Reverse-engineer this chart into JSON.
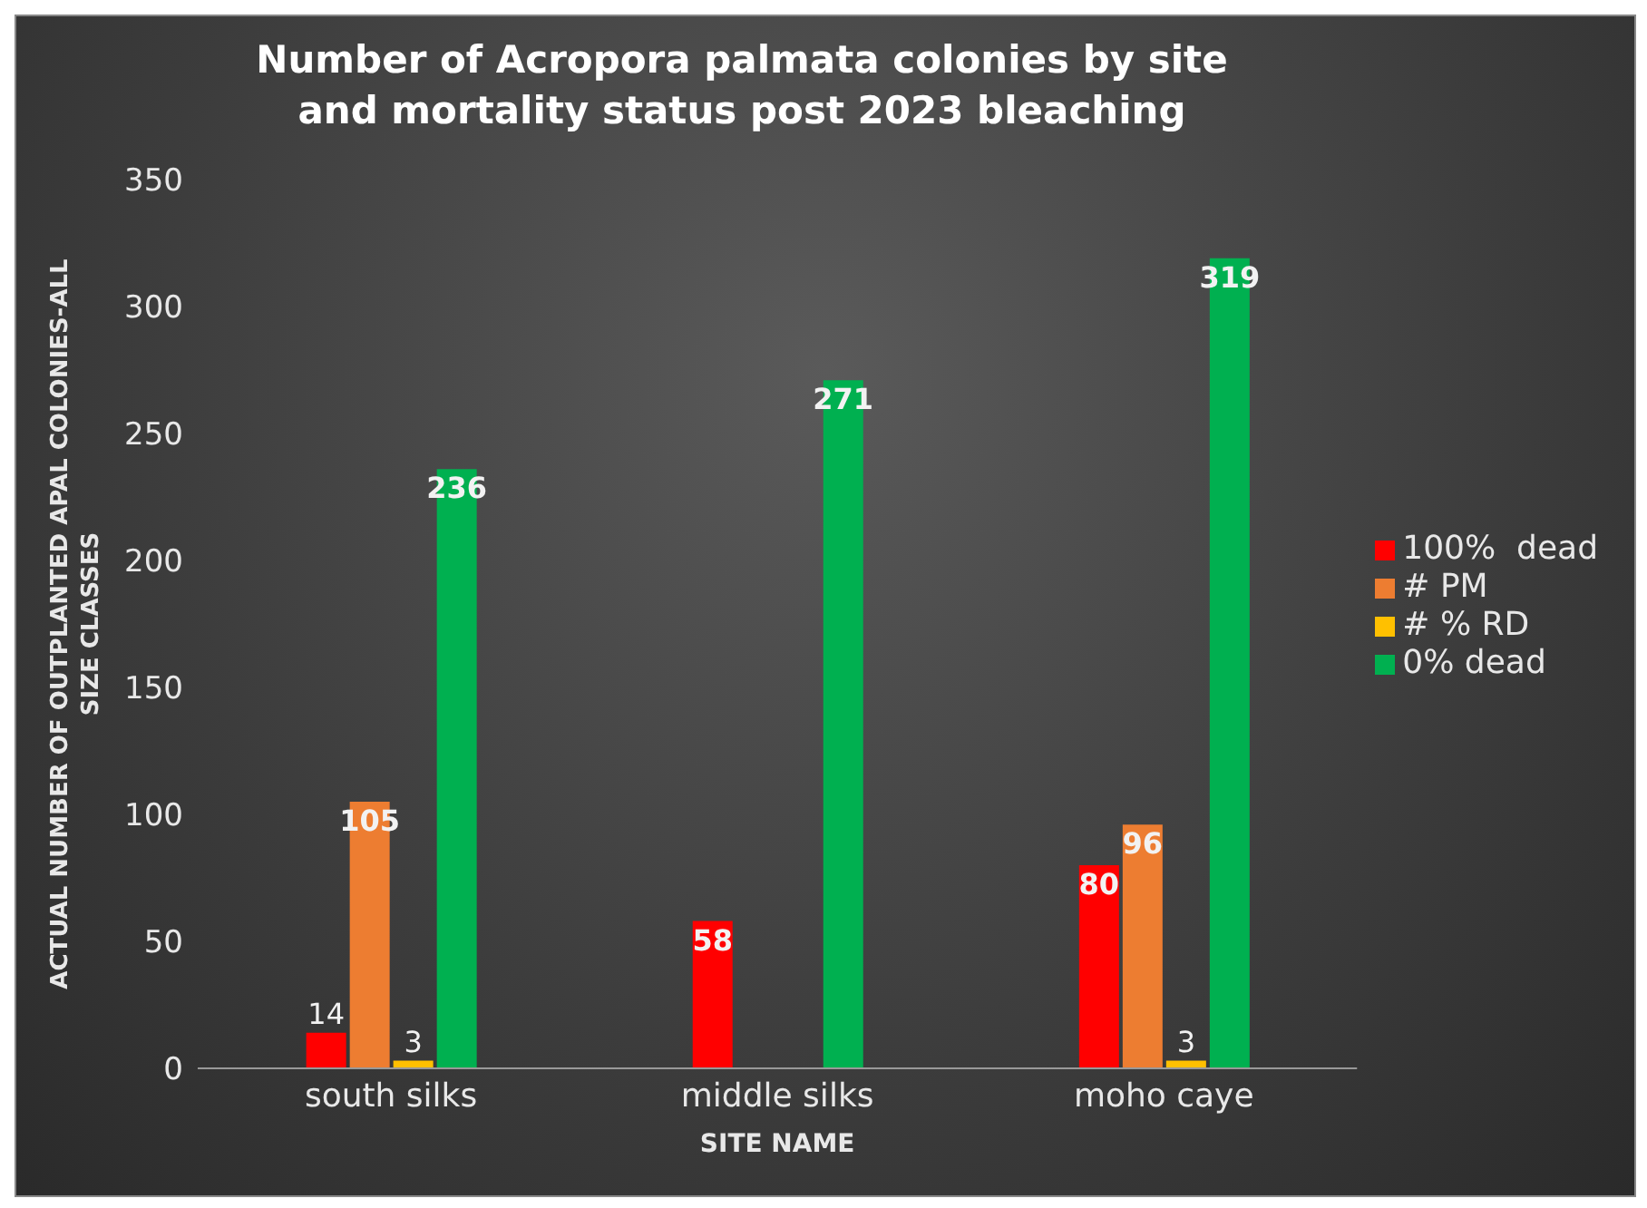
{
  "chart_data": {
    "type": "bar",
    "title": "Number of Acropora palmata colonies by site and mortality status post 2023 bleaching",
    "xlabel": "SITE NAME",
    "ylabel": "ACTUAL NUMBER OF OUTPLANTED APAL COLONIES-ALL SIZE CLASSES",
    "categories": [
      "south silks",
      "middle silks",
      "moho caye"
    ],
    "series": [
      {
        "name": "100%  dead",
        "color": "#ff0000",
        "values": [
          14,
          58,
          80
        ]
      },
      {
        "name": "# PM",
        "color": "#ed7d31",
        "values": [
          105,
          null,
          96
        ]
      },
      {
        "name": "# % RD",
        "color": "#ffc000",
        "values": [
          3,
          null,
          3
        ]
      },
      {
        "name": "0% dead",
        "color": "#00b050",
        "values": [
          236,
          271,
          319
        ]
      }
    ],
    "ylim": [
      0,
      350
    ],
    "yticks": [
      0,
      50,
      100,
      150,
      200,
      250,
      300,
      350
    ],
    "grid": false,
    "legend": "right",
    "data_labels": true
  }
}
